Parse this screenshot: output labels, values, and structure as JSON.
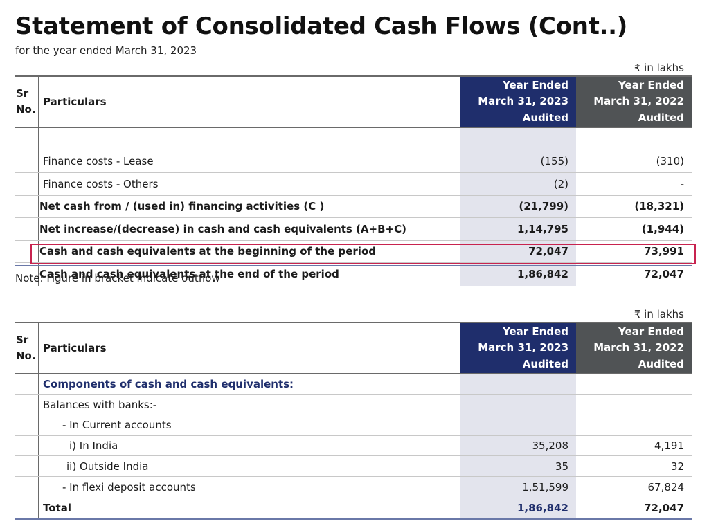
{
  "title": "Statement of Consolidated Cash Flows (Cont..)",
  "subtitle": "for the year ended March 31, 2023",
  "unit_label": "₹ in lakhs",
  "note": "Note: Figure in bracket indicate outflow",
  "header": {
    "sr_line1": "Sr",
    "sr_line2": "No.",
    "particulars": "Particulars",
    "col1": [
      "Year Ended",
      "March 31, 2023",
      "Audited"
    ],
    "col2": [
      "Year Ended",
      "March 31, 2022",
      "Audited"
    ]
  },
  "table1": {
    "rows": [
      {
        "particular": "Finance costs - Lease",
        "v2023": "(155)",
        "v2022": "(310)"
      },
      {
        "particular": "Finance costs - Others",
        "v2023": "(2)",
        "v2022": "-"
      },
      {
        "particular": "Net cash from / (used in) financing activities (C )",
        "v2023": "(21,799)",
        "v2022": "(18,321)"
      },
      {
        "particular": "Net increase/(decrease) in cash and cash equivalents (A+B+C)",
        "v2023": "1,14,795",
        "v2022": "(1,944)"
      },
      {
        "particular": "Cash and cash equivalents at the beginning of the period",
        "v2023": "72,047",
        "v2022": "73,991"
      },
      {
        "particular": "Cash and cash equivalents at the end of the period",
        "v2023": "1,86,842",
        "v2022": "72,047"
      }
    ]
  },
  "table2": {
    "rows": [
      {
        "particular": "Components of cash and cash equivalents:",
        "v2023": "",
        "v2022": ""
      },
      {
        "particular": "Balances with banks:-",
        "v2023": "",
        "v2022": ""
      },
      {
        "particular": "- In Current accounts",
        "v2023": "",
        "v2022": ""
      },
      {
        "particular": "i)  In India",
        "v2023": "35,208",
        "v2022": "4,191"
      },
      {
        "particular": "ii)  Outside India",
        "v2023": "35",
        "v2022": "32"
      },
      {
        "particular": "- In flexi deposit accounts",
        "v2023": "1,51,599",
        "v2022": "67,824"
      }
    ],
    "total": {
      "particular": "Total",
      "v2023": "1,86,842",
      "v2022": "72,047"
    }
  },
  "colors": {
    "header_blue": "#1f2e6c",
    "header_grey": "#505355",
    "highlight": "#c8234f",
    "col_shade": "#e3e4ed"
  }
}
